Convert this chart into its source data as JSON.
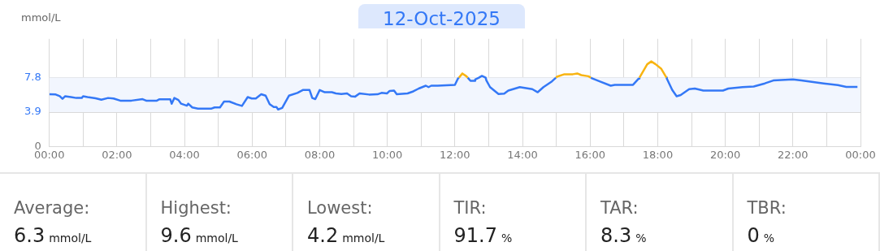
{
  "chart_data": {
    "type": "line",
    "title": "12-Oct-2025",
    "ylabel": "mmol/L",
    "xlim": [
      0,
      24
    ],
    "ylim": [
      0,
      12.2
    ],
    "xticks": [
      {
        "value": 0,
        "label": "00:00"
      },
      {
        "value": 1,
        "label": null
      },
      {
        "value": 2,
        "label": "02:00"
      },
      {
        "value": 3,
        "label": null
      },
      {
        "value": 4,
        "label": "04:00"
      },
      {
        "value": 5,
        "label": null
      },
      {
        "value": 6,
        "label": "06:00"
      },
      {
        "value": 7,
        "label": null
      },
      {
        "value": 8,
        "label": "08:00"
      },
      {
        "value": 9,
        "label": null
      },
      {
        "value": 10,
        "label": "10:00"
      },
      {
        "value": 11,
        "label": null
      },
      {
        "value": 12,
        "label": "12:00"
      },
      {
        "value": 13,
        "label": null
      },
      {
        "value": 14,
        "label": "14:00"
      },
      {
        "value": 15,
        "label": null
      },
      {
        "value": 16,
        "label": "16:00"
      },
      {
        "value": 17,
        "label": null
      },
      {
        "value": 18,
        "label": "18:00"
      },
      {
        "value": 19,
        "label": null
      },
      {
        "value": 20,
        "label": "20:00"
      },
      {
        "value": 21,
        "label": null
      },
      {
        "value": 22,
        "label": "22:00"
      },
      {
        "value": 23,
        "label": null
      },
      {
        "value": 24,
        "label": "00:00"
      }
    ],
    "yticks": [
      0,
      3.9,
      7.8
    ],
    "grid": true,
    "marker": "none",
    "bands": [
      {
        "axis": "y",
        "from": 3.9,
        "to": 7.8,
        "color": "#f2f6fe"
      }
    ],
    "series": [
      {
        "color": "#3478f6",
        "x": [
          0,
          0.19,
          0.31,
          0.39,
          0.47,
          0.64,
          0.8,
          0.96,
          1.0,
          1.13,
          1.37,
          1.54,
          1.74,
          1.9,
          2.1,
          2.43,
          2.76,
          2.88,
          3.17,
          3.25,
          3.58,
          3.62,
          3.7,
          3.82,
          3.9,
          4.07,
          4.11,
          4.23,
          4.4,
          4.8,
          4.89,
          5.05,
          5.17,
          5.33,
          5.54,
          5.7,
          5.87,
          5.99,
          6.11,
          6.27,
          6.4,
          6.52,
          6.64,
          6.72,
          6.77,
          6.89,
          7.09,
          7.34,
          7.5,
          7.7,
          7.78,
          7.87,
          8.0,
          8.15,
          8.36,
          8.48,
          8.64,
          8.81,
          8.93,
          9.05,
          9.18,
          9.46,
          9.71,
          9.83,
          9.99,
          10.07,
          10.2,
          10.28,
          10.6,
          10.77,
          10.93,
          11.14,
          11.22,
          11.3,
          11.49,
          12,
          12.09,
          12.12,
          12.2,
          12.38,
          12.46,
          12.59,
          12.6,
          12.71,
          12.8,
          12.91,
          12.93,
          13.04,
          13.29,
          13.46,
          13.58,
          13.92,
          14.29,
          14.45,
          14.62,
          14.87,
          14.99,
          15.5,
          16.02,
          16.07,
          16.28,
          16.61,
          16.73,
          17.27,
          17.44,
          17.46,
          17.8,
          18.26,
          18.27,
          18.43,
          18.56,
          18.68,
          18.93,
          19.1,
          19.35,
          19.93,
          20.09,
          20.51,
          20.84,
          21.17,
          21.42,
          22.0,
          22.25,
          22.91,
          23.33,
          23.58,
          23.91
        ],
        "values": [
          5.92,
          5.9,
          5.7,
          5.4,
          5.7,
          5.6,
          5.5,
          5.5,
          5.7,
          5.6,
          5.47,
          5.3,
          5.5,
          5.44,
          5.2,
          5.2,
          5.37,
          5.18,
          5.18,
          5.34,
          5.34,
          4.85,
          5.5,
          5.27,
          4.85,
          4.63,
          4.85,
          4.43,
          4.3,
          4.3,
          4.43,
          4.43,
          5.1,
          5.1,
          4.79,
          4.6,
          5.6,
          5.44,
          5.44,
          5.92,
          5.76,
          4.79,
          4.47,
          4.47,
          4.2,
          4.37,
          5.76,
          6.08,
          6.4,
          6.4,
          5.5,
          5.37,
          6.4,
          6.15,
          6.15,
          6.02,
          5.95,
          6.02,
          5.7,
          5.66,
          6.02,
          5.89,
          5.92,
          6.08,
          6.02,
          6.3,
          6.34,
          5.92,
          6.02,
          6.25,
          6.57,
          6.89,
          6.73,
          6.89,
          6.89,
          6.99,
          7.7,
          7.8,
          null,
          7.8,
          7.44,
          7.44,
          7.6,
          7.8,
          8.0,
          7.8,
          7.5,
          6.73,
          5.95,
          5.99,
          6.34,
          6.73,
          6.5,
          6.15,
          6.73,
          7.38,
          7.8,
          null,
          7.8,
          7.7,
          7.38,
          6.89,
          6.99,
          6.99,
          7.7,
          7.8,
          null,
          7.8,
          7.7,
          6.41,
          5.7,
          5.83,
          6.5,
          6.57,
          6.34,
          6.34,
          6.57,
          6.73,
          6.8,
          7.15,
          7.48,
          7.6,
          7.48,
          7.15,
          6.96,
          6.76,
          6.76
        ]
      },
      {
        "color": "#f8b411",
        "x": [
          12.12,
          12.22,
          12.34,
          12.38,
          12.5,
          14.99,
          15.03,
          15.24,
          15.49,
          15.62,
          15.74,
          15.95,
          16.02,
          17.0,
          17.46,
          17.69,
          17.81,
          17.94,
          18.1,
          18.26
        ],
        "values": [
          7.8,
          8.28,
          7.96,
          7.8,
          null,
          7.8,
          7.93,
          8.19,
          8.19,
          8.28,
          8.09,
          7.96,
          7.8,
          null,
          7.8,
          9.32,
          9.64,
          9.32,
          8.83,
          7.8
        ]
      }
    ],
    "annotations": [
      "Average:",
      "6.3 mmol/L",
      "Highest:",
      "9.6 mmol/L",
      "Lowest:",
      "4.2 mmol/L",
      "TIR:",
      "91.7 %",
      "TAR:",
      "8.3 %",
      "TBR:",
      "0 %"
    ]
  }
}
